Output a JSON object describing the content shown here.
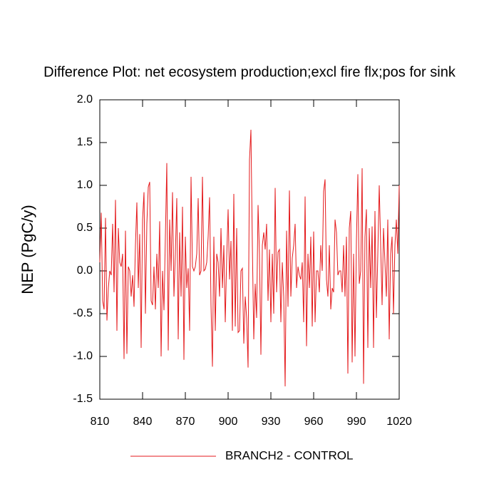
{
  "chart_data": {
    "type": "line",
    "title": "Difference Plot: net ecosystem production;excl fire flx;pos for sink",
    "y_label": "NEP  (PgC/y)",
    "xlim": [
      810,
      1020
    ],
    "xticks": [
      810,
      840,
      870,
      900,
      930,
      960,
      990,
      1020
    ],
    "ylim": [
      -1.5,
      2.0
    ],
    "yticks": [
      {
        "value": 2.0,
        "label": "2.0"
      },
      1.5,
      {
        "value": 1.0,
        "label": "1.0"
      },
      0.5,
      {
        "value": 0.0,
        "label": "0.0"
      },
      -0.5,
      {
        "value": -1.0,
        "label": "-1.0"
      },
      -1.5
    ],
    "x": [
      810,
      811,
      812,
      813,
      814,
      815,
      816,
      817,
      818,
      819,
      820,
      821,
      822,
      823,
      824,
      825,
      826,
      827,
      828,
      829,
      830,
      831,
      832,
      833,
      834,
      835,
      836,
      837,
      838,
      839,
      840,
      841,
      842,
      843,
      844,
      845,
      846,
      847,
      848,
      849,
      850,
      851,
      852,
      853,
      854,
      855,
      856,
      857,
      858,
      859,
      860,
      861,
      862,
      863,
      864,
      865,
      866,
      867,
      868,
      869,
      870,
      871,
      872,
      873,
      874,
      875,
      876,
      877,
      878,
      879,
      880,
      881,
      882,
      883,
      884,
      885,
      886,
      887,
      888,
      889,
      890,
      891,
      892,
      893,
      894,
      895,
      896,
      897,
      898,
      899,
      900,
      901,
      902,
      903,
      904,
      905,
      906,
      907,
      908,
      909,
      910,
      911,
      912,
      913,
      914,
      915,
      916,
      917,
      918,
      919,
      920,
      921,
      922,
      923,
      924,
      925,
      926,
      927,
      928,
      929,
      930,
      931,
      932,
      933,
      934,
      935,
      936,
      937,
      938,
      939,
      940,
      941,
      942,
      943,
      944,
      945,
      946,
      947,
      948,
      949,
      950,
      951,
      952,
      953,
      954,
      955,
      956,
      957,
      958,
      959,
      960,
      961,
      962,
      963,
      964,
      965,
      966,
      967,
      968,
      969,
      970,
      971,
      972,
      973,
      974,
      975,
      976,
      977,
      978,
      979,
      980,
      981,
      982,
      983,
      984,
      985,
      986,
      987,
      988,
      989,
      990,
      991,
      992,
      993,
      994,
      995,
      996,
      997,
      998,
      999,
      1000,
      1001,
      1002,
      1003,
      1004,
      1005,
      1006,
      1007,
      1008,
      1009,
      1010,
      1011,
      1012,
      1013,
      1014,
      1015,
      1016,
      1017,
      1018,
      1019,
      1020
    ],
    "series": [
      {
        "name": "BRANCH2 - CONTROL",
        "color": "#e41a1c",
        "values": [
          0.1,
          0.68,
          -0.35,
          -0.45,
          0.62,
          -0.58,
          -0.2,
          0.0,
          -0.05,
          0.55,
          -0.25,
          0.83,
          -0.7,
          0.5,
          0.1,
          0.05,
          0.2,
          -1.03,
          0.47,
          -0.97,
          0.05,
          0.0,
          -0.3,
          -0.05,
          -0.42,
          0.3,
          0.8,
          -0.2,
          0.43,
          -0.9,
          0.6,
          0.92,
          -0.5,
          0.55,
          0.98,
          1.04,
          -0.35,
          -0.4,
          0.05,
          -0.45,
          0.2,
          -0.2,
          0.58,
          -1.0,
          0.0,
          -0.46,
          0.4,
          1.26,
          -0.93,
          0.6,
          0.0,
          0.92,
          -0.3,
          0.2,
          0.85,
          -0.8,
          0.45,
          -0.3,
          0.75,
          -1.04,
          0.4,
          -0.2,
          0.03,
          -0.7,
          1.1,
          0.05,
          0.0,
          0.05,
          0.2,
          0.85,
          -0.05,
          0.0,
          1.1,
          0.0,
          0.02,
          0.1,
          0.4,
          0.86,
          -0.4,
          -1.12,
          0.4,
          -0.7,
          0.2,
          0.1,
          -0.3,
          0.5,
          -0.2,
          0.3,
          -0.6,
          0.15,
          0.72,
          -0.1,
          0.35,
          -0.7,
          0.9,
          -0.65,
          0.5,
          -0.72,
          -0.7,
          0.0,
          0.03,
          -0.85,
          -0.3,
          -0.55,
          -1.13,
          1.3,
          1.65,
          0.3,
          -0.8,
          -0.15,
          -0.55,
          0.77,
          0.2,
          -0.98,
          0.3,
          0.45,
          0.25,
          0.55,
          -0.35,
          0.25,
          -0.6,
          0.2,
          -0.5,
          0.97,
          -0.25,
          0.22,
          0.25,
          -0.6,
          0.1,
          -0.3,
          -1.35,
          0.47,
          -0.42,
          0.94,
          -0.3,
          0.15,
          0.3,
          0.55,
          -0.2,
          0.05,
          -0.05,
          -0.1,
          0.1,
          -0.6,
          0.87,
          -0.88,
          0.2,
          -0.2,
          0.4,
          -0.65,
          0.46,
          -0.6,
          0.0,
          0.0,
          -0.25,
          0.3,
          0.0,
          0.93,
          1.07,
          -0.1,
          -0.3,
          0.3,
          -0.45,
          -0.2,
          -0.25,
          0.6,
          0.45,
          -0.05,
          0.0,
          0.0,
          -0.25,
          0.3,
          -0.3,
          0.4,
          -1.2,
          0.5,
          0.7,
          -1.07,
          0.2,
          -1.0,
          0.35,
          1.13,
          -0.15,
          0.0,
          1.2,
          -1.32,
          0.4,
          0.72,
          -0.9,
          0.5,
          -0.2,
          0.52,
          -0.9,
          0.7,
          -0.55,
          0.2,
          1.0,
          0.3,
          -0.4,
          0.5,
          0.1,
          -0.3,
          0.6,
          -0.8,
          0.2,
          0.4,
          -0.5,
          0.3,
          0.6,
          0.2,
          1.0
        ]
      }
    ]
  }
}
